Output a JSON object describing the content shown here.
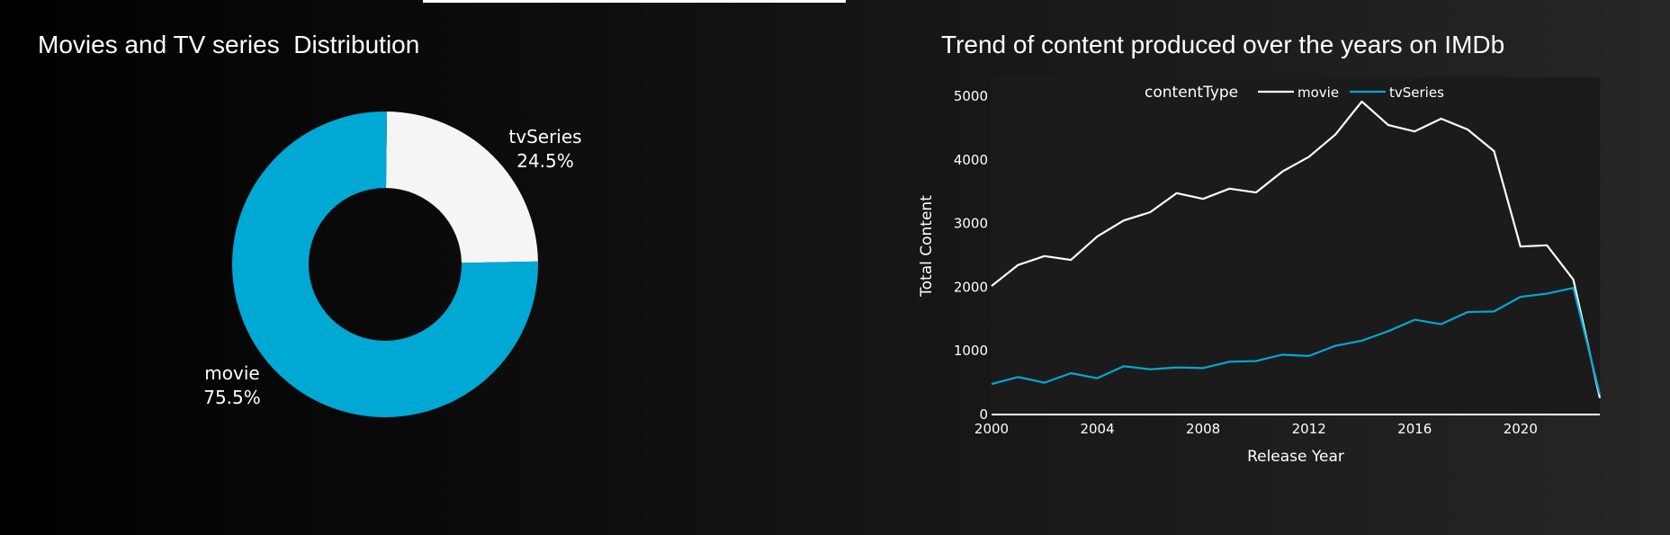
{
  "colors": {
    "movie_line": "#ffffff",
    "tvseries_line": "#00a8d4",
    "pie_movie": "#00a8d4",
    "pie_tvseries": "#f5f5f5",
    "line_panel_bg": "#1b1b1b"
  },
  "chart_data": [
    {
      "type": "pie",
      "hole": true,
      "title": "Movies and TV series  Distribution",
      "labels": [
        "tvSeries",
        "movie"
      ],
      "values": [
        24.5,
        75.5
      ],
      "value_labels": [
        "24.5%",
        "75.5%"
      ],
      "colors": [
        "#f5f5f5",
        "#00a8d4"
      ]
    },
    {
      "type": "line",
      "title": "Trend of content produced over the years on IMDb",
      "xlabel": "Release Year",
      "ylabel": "Total Content",
      "xlim": [
        2000,
        2023
      ],
      "ylim": [
        0,
        5300
      ],
      "xticks": [
        "2000",
        "2004",
        "2008",
        "2012",
        "2016",
        "2020"
      ],
      "yticks": [
        "0",
        "1000",
        "2000",
        "3000",
        "4000",
        "5000"
      ],
      "legend_title": "contentType",
      "legend_position": "top",
      "x": [
        2000,
        2001,
        2002,
        2003,
        2004,
        2005,
        2006,
        2007,
        2008,
        2009,
        2010,
        2011,
        2012,
        2013,
        2014,
        2015,
        2016,
        2017,
        2018,
        2019,
        2020,
        2021,
        2022,
        2023
      ],
      "series": [
        {
          "name": "movie",
          "color": "#ffffff",
          "values": [
            2020,
            2350,
            2490,
            2430,
            2800,
            3050,
            3180,
            3480,
            3390,
            3550,
            3490,
            3820,
            4050,
            4400,
            4920,
            4550,
            4450,
            4650,
            4480,
            4140,
            2640,
            2660,
            2120,
            260
          ]
        },
        {
          "name": "tvSeries",
          "color": "#00a8d4",
          "values": [
            480,
            590,
            500,
            650,
            570,
            760,
            710,
            740,
            730,
            830,
            840,
            940,
            920,
            1080,
            1160,
            1310,
            1490,
            1420,
            1610,
            1620,
            1850,
            1900,
            1990,
            320
          ]
        }
      ]
    }
  ]
}
